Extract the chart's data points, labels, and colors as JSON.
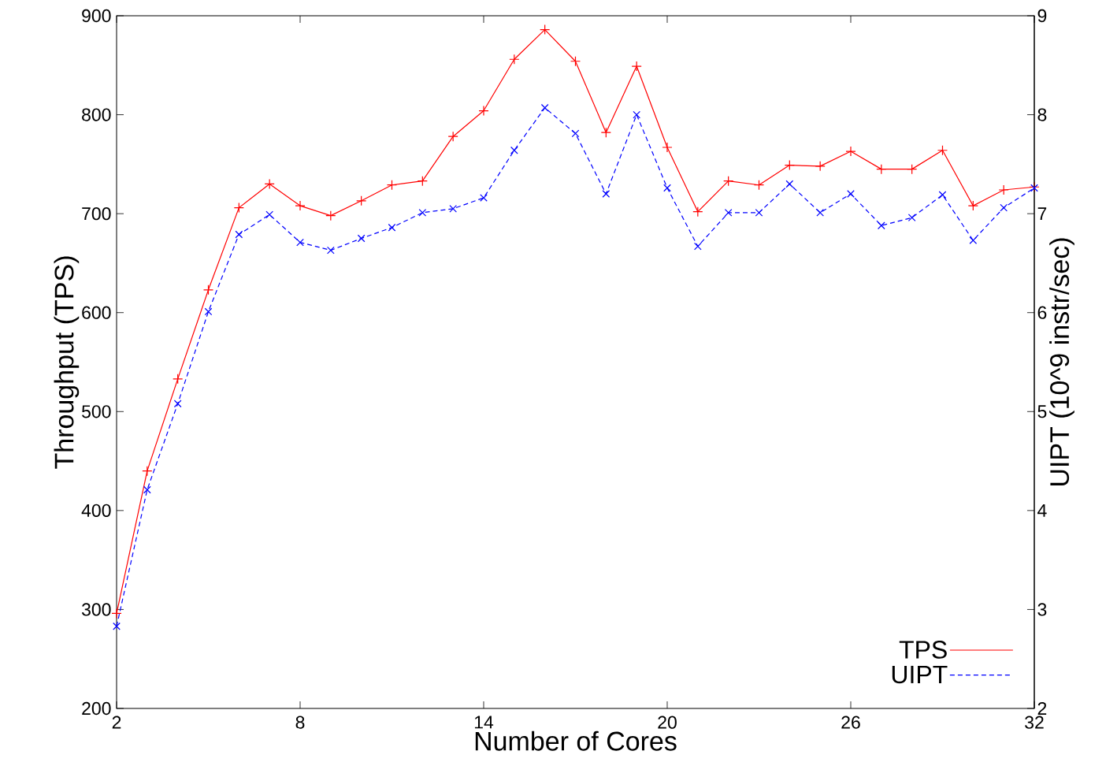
{
  "chart_data": {
    "type": "line",
    "xlabel": "Number of Cores",
    "ylabel": "Throughput (TPS)",
    "y2label": "UIPT (10^9 instr/sec)",
    "x": [
      2,
      3,
      4,
      5,
      6,
      7,
      8,
      9,
      10,
      11,
      12,
      13,
      14,
      15,
      16,
      17,
      18,
      19,
      20,
      21,
      22,
      23,
      24,
      25,
      26,
      27,
      28,
      29,
      30,
      31,
      32
    ],
    "xlim": [
      2,
      32
    ],
    "xticks": [
      2,
      8,
      14,
      20,
      26,
      32
    ],
    "ylim": [
      200,
      900
    ],
    "yticks": [
      200,
      300,
      400,
      500,
      600,
      700,
      800,
      900
    ],
    "y2lim": [
      2,
      9
    ],
    "y2ticks": [
      2,
      3,
      4,
      5,
      6,
      7,
      8,
      9
    ],
    "legend": "bottom right",
    "series": [
      {
        "name": "TPS",
        "color": "#ff0000",
        "marker": "plus",
        "line_style": "solid",
        "values": [
          296,
          440,
          533,
          623,
          706,
          730,
          708,
          698,
          713,
          729,
          733,
          778,
          804,
          856,
          886,
          854,
          782,
          849,
          767,
          702,
          733,
          729,
          749,
          748,
          763,
          745,
          745,
          764,
          708,
          724,
          727
        ]
      },
      {
        "name": "UIPT",
        "color": "#0000ff",
        "marker": "cross",
        "line_style": "dashed",
        "axis": "y2",
        "values": [
          2.83,
          4.21,
          5.08,
          6.01,
          6.79,
          6.99,
          6.71,
          6.63,
          6.75,
          6.86,
          7.01,
          7.05,
          7.16,
          7.64,
          8.07,
          7.81,
          7.2,
          8.0,
          7.26,
          6.67,
          7.01,
          7.01,
          7.3,
          7.01,
          7.2,
          6.88,
          6.96,
          7.19,
          6.73,
          7.06,
          7.26
        ]
      }
    ]
  }
}
